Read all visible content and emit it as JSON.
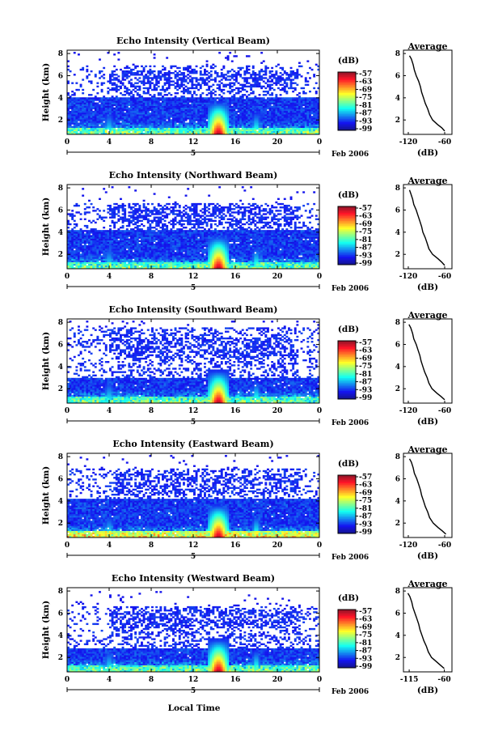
{
  "figure": {
    "xlabel": "Local Time"
  },
  "chart_data": [
    {
      "type": "heatmap",
      "title": "Echo Intensity (Vertical Beam)",
      "ylabel": "Height (km)",
      "x_ticks": [
        "0",
        "4",
        "8",
        "12",
        "16",
        "20",
        "0"
      ],
      "y_ticks": [
        "2",
        "4",
        "6",
        "8"
      ],
      "xlim": [
        0,
        24
      ],
      "ylim": [
        0.7,
        8.3
      ],
      "date_marker": "5",
      "date_label": "Feb 2006",
      "colorbar": {
        "label": "(dB)",
        "ticks": [
          "-57",
          "-63",
          "-69",
          "-75",
          "-81",
          "-87",
          "-93",
          "-99"
        ]
      },
      "params": {
        "seed": 11,
        "blue_top": 4.0,
        "sparse_top": 7.0,
        "band_hi": 6.5,
        "bottom_boost": 0.0
      },
      "profile": {
        "title": "Average",
        "xlabel": "(dB)",
        "x_ticks": [
          "-120",
          "-60"
        ],
        "xlim": [
          -128,
          -48
        ],
        "y_ticks": [
          "2",
          "4",
          "6",
          "8"
        ],
        "ylim": [
          0.7,
          8.3
        ],
        "height_km": [
          1.0,
          1.3,
          1.6,
          2.0,
          2.5,
          3.0,
          3.5,
          4.0,
          4.5,
          5.0,
          5.5,
          6.0,
          6.5,
          7.0,
          7.5,
          7.8
        ],
        "intensity_db": [
          -60,
          -65,
          -72,
          -80,
          -85,
          -88,
          -92,
          -95,
          -98,
          -100,
          -103,
          -107,
          -110,
          -112,
          -115,
          -118
        ]
      }
    },
    {
      "type": "heatmap",
      "title": "Echo Intensity (Northward Beam)",
      "ylabel": "Height (km)",
      "x_ticks": [
        "0",
        "4",
        "8",
        "12",
        "16",
        "20",
        "0"
      ],
      "y_ticks": [
        "2",
        "4",
        "6",
        "8"
      ],
      "xlim": [
        0,
        24
      ],
      "ylim": [
        0.7,
        8.3
      ],
      "date_marker": "5",
      "date_label": "Feb 2006",
      "colorbar": {
        "label": "(dB)",
        "ticks": [
          "-57",
          "-63",
          "-69",
          "-75",
          "-81",
          "-87",
          "-93",
          "-99"
        ]
      },
      "params": {
        "seed": 23,
        "blue_top": 4.2,
        "sparse_top": 6.7,
        "band_hi": 6.4,
        "bottom_boost": 0.0
      },
      "profile": {
        "title": "Average",
        "xlabel": "(dB)",
        "x_ticks": [
          "-120",
          "-60"
        ],
        "xlim": [
          -128,
          -48
        ],
        "y_ticks": [
          "2",
          "4",
          "6",
          "8"
        ],
        "ylim": [
          0.7,
          8.3
        ],
        "height_km": [
          1.0,
          1.3,
          1.6,
          2.0,
          2.5,
          3.0,
          3.5,
          4.0,
          4.5,
          5.0,
          5.5,
          6.0,
          6.5,
          7.0,
          7.5,
          7.8
        ],
        "intensity_db": [
          -60,
          -65,
          -71,
          -80,
          -86,
          -89,
          -92,
          -96,
          -98,
          -101,
          -104,
          -107,
          -111,
          -113,
          -116,
          -118
        ]
      }
    },
    {
      "type": "heatmap",
      "title": "Echo Intensity (Southward Beam)",
      "ylabel": "Height (km)",
      "x_ticks": [
        "0",
        "4",
        "8",
        "12",
        "16",
        "20",
        "0"
      ],
      "y_ticks": [
        "2",
        "4",
        "6",
        "8"
      ],
      "xlim": [
        0,
        24
      ],
      "ylim": [
        0.7,
        8.3
      ],
      "date_marker": "5",
      "date_label": "Feb 2006",
      "colorbar": {
        "label": "(dB)",
        "ticks": [
          "-57",
          "-63",
          "-69",
          "-75",
          "-81",
          "-87",
          "-93",
          "-99"
        ]
      },
      "params": {
        "seed": 37,
        "blue_top": 3.0,
        "sparse_top": 7.6,
        "band_hi": 6.6,
        "bottom_boost": 0.0
      },
      "profile": {
        "title": "Average",
        "xlabel": "(dB)",
        "x_ticks": [
          "-120",
          "-60"
        ],
        "xlim": [
          -128,
          -48
        ],
        "y_ticks": [
          "2",
          "4",
          "6",
          "8"
        ],
        "ylim": [
          0.7,
          8.3
        ],
        "height_km": [
          1.0,
          1.3,
          1.6,
          2.0,
          2.5,
          3.0,
          3.5,
          4.0,
          4.5,
          5.0,
          5.5,
          6.0,
          6.5,
          7.0,
          7.5,
          7.8
        ],
        "intensity_db": [
          -60,
          -66,
          -73,
          -81,
          -86,
          -89,
          -93,
          -96,
          -99,
          -101,
          -104,
          -107,
          -111,
          -113,
          -116,
          -119
        ]
      }
    },
    {
      "type": "heatmap",
      "title": "Echo Intensity (Eastward Beam)",
      "ylabel": "Height (km)",
      "x_ticks": [
        "0",
        "4",
        "8",
        "12",
        "16",
        "20",
        "0"
      ],
      "y_ticks": [
        "2",
        "4",
        "6",
        "8"
      ],
      "xlim": [
        0,
        24
      ],
      "ylim": [
        0.7,
        8.3
      ],
      "date_marker": "5",
      "date_label": "Feb 2006",
      "colorbar": {
        "label": "(dB)",
        "ticks": [
          "-57",
          "-63",
          "-69",
          "-75",
          "-81",
          "-87",
          "-93",
          "-99"
        ]
      },
      "params": {
        "seed": 41,
        "blue_top": 4.2,
        "sparse_top": 7.0,
        "band_hi": 6.5,
        "bottom_boost": 1.0
      },
      "profile": {
        "title": "Average",
        "xlabel": "(dB)",
        "x_ticks": [
          "-120",
          "-60"
        ],
        "xlim": [
          -128,
          -48
        ],
        "y_ticks": [
          "2",
          "4",
          "6",
          "8"
        ],
        "ylim": [
          0.7,
          8.3
        ],
        "height_km": [
          1.0,
          1.3,
          1.6,
          2.0,
          2.5,
          3.0,
          3.5,
          4.0,
          4.5,
          5.0,
          5.5,
          6.0,
          6.5,
          7.0,
          7.5,
          7.8
        ],
        "intensity_db": [
          -58,
          -64,
          -71,
          -79,
          -85,
          -88,
          -92,
          -95,
          -98,
          -100,
          -103,
          -106,
          -110,
          -112,
          -115,
          -118
        ]
      }
    },
    {
      "type": "heatmap",
      "title": "Echo Intensity (Westward Beam)",
      "ylabel": "Height (km)",
      "x_ticks": [
        "0",
        "4",
        "8",
        "12",
        "16",
        "20",
        "0"
      ],
      "y_ticks": [
        "2",
        "4",
        "6",
        "8"
      ],
      "xlim": [
        0,
        24
      ],
      "ylim": [
        0.7,
        8.3
      ],
      "date_marker": "5",
      "date_label": "Feb 2006",
      "colorbar": {
        "label": "(dB)",
        "ticks": [
          "-57",
          "-63",
          "-69",
          "-75",
          "-81",
          "-87",
          "-93",
          "-99"
        ]
      },
      "params": {
        "seed": 53,
        "blue_top": 2.8,
        "sparse_top": 6.6,
        "band_hi": 6.3,
        "bottom_boost": 0.0
      },
      "profile": {
        "title": "Average",
        "xlabel": "(dB)",
        "x_ticks": [
          "-115",
          "-60"
        ],
        "xlim": [
          -124,
          -48
        ],
        "y_ticks": [
          "2",
          "4",
          "6",
          "8"
        ],
        "ylim": [
          0.7,
          8.3
        ],
        "height_km": [
          1.0,
          1.3,
          1.6,
          2.0,
          2.5,
          3.0,
          3.5,
          4.0,
          4.5,
          5.0,
          5.5,
          6.0,
          6.5,
          7.0,
          7.5,
          7.8
        ],
        "intensity_db": [
          -60,
          -66,
          -72,
          -80,
          -85,
          -88,
          -92,
          -95,
          -98,
          -100,
          -103,
          -106,
          -109,
          -111,
          -114,
          -117
        ]
      }
    }
  ]
}
